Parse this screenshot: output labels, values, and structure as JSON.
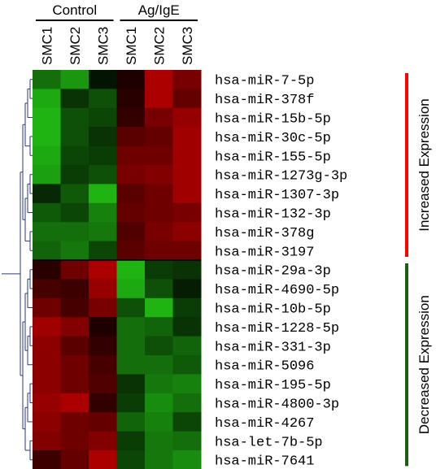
{
  "chart_data": {
    "type": "heatmap",
    "groups": [
      {
        "label": "Control",
        "columns": [
          "SMC1",
          "SMC2",
          "SMC3"
        ]
      },
      {
        "label": "Ag/IgE",
        "columns": [
          "SMC1",
          "SMC2",
          "SMC3"
        ]
      }
    ],
    "columns": [
      "SMC1",
      "SMC2",
      "SMC3",
      "SMC1",
      "SMC2",
      "SMC3"
    ],
    "rows": [
      "hsa-miR-7-5p",
      "hsa-miR-378f",
      "hsa-miR-15b-5p",
      "hsa-miR-30c-5p",
      "hsa-miR-155-5p",
      "hsa-miR-1273g-3p",
      "hsa-miR-1307-3p",
      "hsa-miR-132-3p",
      "hsa-miR-378g",
      "hsa-miR-3197",
      "hsa-miR-29a-3p",
      "hsa-miR-4690-5p",
      "hsa-miR-10b-5p",
      "hsa-miR-1228-5p",
      "hsa-miR-331-3p",
      "hsa-miR-5096",
      "hsa-miR-195-5p",
      "hsa-miR-4800-3p",
      "hsa-miR-4267",
      "hsa-let-7b-5p",
      "hsa-miR-7641"
    ],
    "values": [
      [
        -0.55,
        -0.75,
        -0.1,
        0.15,
        0.85,
        0.6
      ],
      [
        -0.85,
        -0.25,
        -0.4,
        0.2,
        0.85,
        0.5
      ],
      [
        -0.9,
        -0.4,
        -0.35,
        0.25,
        0.6,
        0.75
      ],
      [
        -0.9,
        -0.4,
        -0.25,
        0.45,
        0.5,
        0.8
      ],
      [
        -0.85,
        -0.35,
        -0.3,
        0.55,
        0.55,
        0.8
      ],
      [
        -0.8,
        -0.3,
        -0.4,
        0.6,
        0.65,
        0.8
      ],
      [
        -0.2,
        -0.45,
        -0.9,
        0.45,
        0.55,
        0.8
      ],
      [
        -0.45,
        -0.35,
        -0.65,
        0.5,
        0.55,
        0.6
      ],
      [
        -0.55,
        -0.55,
        -0.6,
        0.4,
        0.6,
        0.7
      ],
      [
        -0.5,
        -0.6,
        -0.35,
        0.45,
        0.55,
        0.55
      ],
      [
        0.2,
        0.55,
        0.85,
        -0.9,
        -0.3,
        -0.25
      ],
      [
        0.35,
        0.3,
        0.75,
        -0.85,
        -0.4,
        -0.15
      ],
      [
        0.55,
        0.35,
        0.6,
        -0.4,
        -0.9,
        -0.3
      ],
      [
        0.8,
        0.65,
        0.15,
        -0.55,
        -0.5,
        -0.25
      ],
      [
        0.7,
        0.45,
        0.25,
        -0.55,
        -0.4,
        -0.5
      ],
      [
        0.7,
        0.55,
        0.35,
        -0.55,
        -0.55,
        -0.45
      ],
      [
        0.7,
        0.55,
        0.4,
        -0.25,
        -0.6,
        -0.65
      ],
      [
        0.75,
        0.85,
        0.25,
        -0.3,
        -0.7,
        -0.55
      ],
      [
        0.7,
        0.55,
        0.5,
        -0.5,
        -0.65,
        -0.35
      ],
      [
        0.65,
        0.55,
        0.65,
        -0.3,
        -0.6,
        -0.55
      ],
      [
        0.3,
        0.5,
        0.85,
        -0.35,
        -0.6,
        -0.7
      ]
    ],
    "color_scale": {
      "low": "#22c814",
      "mid": "#000000",
      "high": "#c80000"
    },
    "side_labels": [
      {
        "label": "Increased Expression",
        "rows": [
          0,
          9
        ],
        "color": "#ff0000"
      },
      {
        "label": "Decreased Expression",
        "rows": [
          10,
          20
        ],
        "color": "#1a5e14"
      }
    ]
  }
}
